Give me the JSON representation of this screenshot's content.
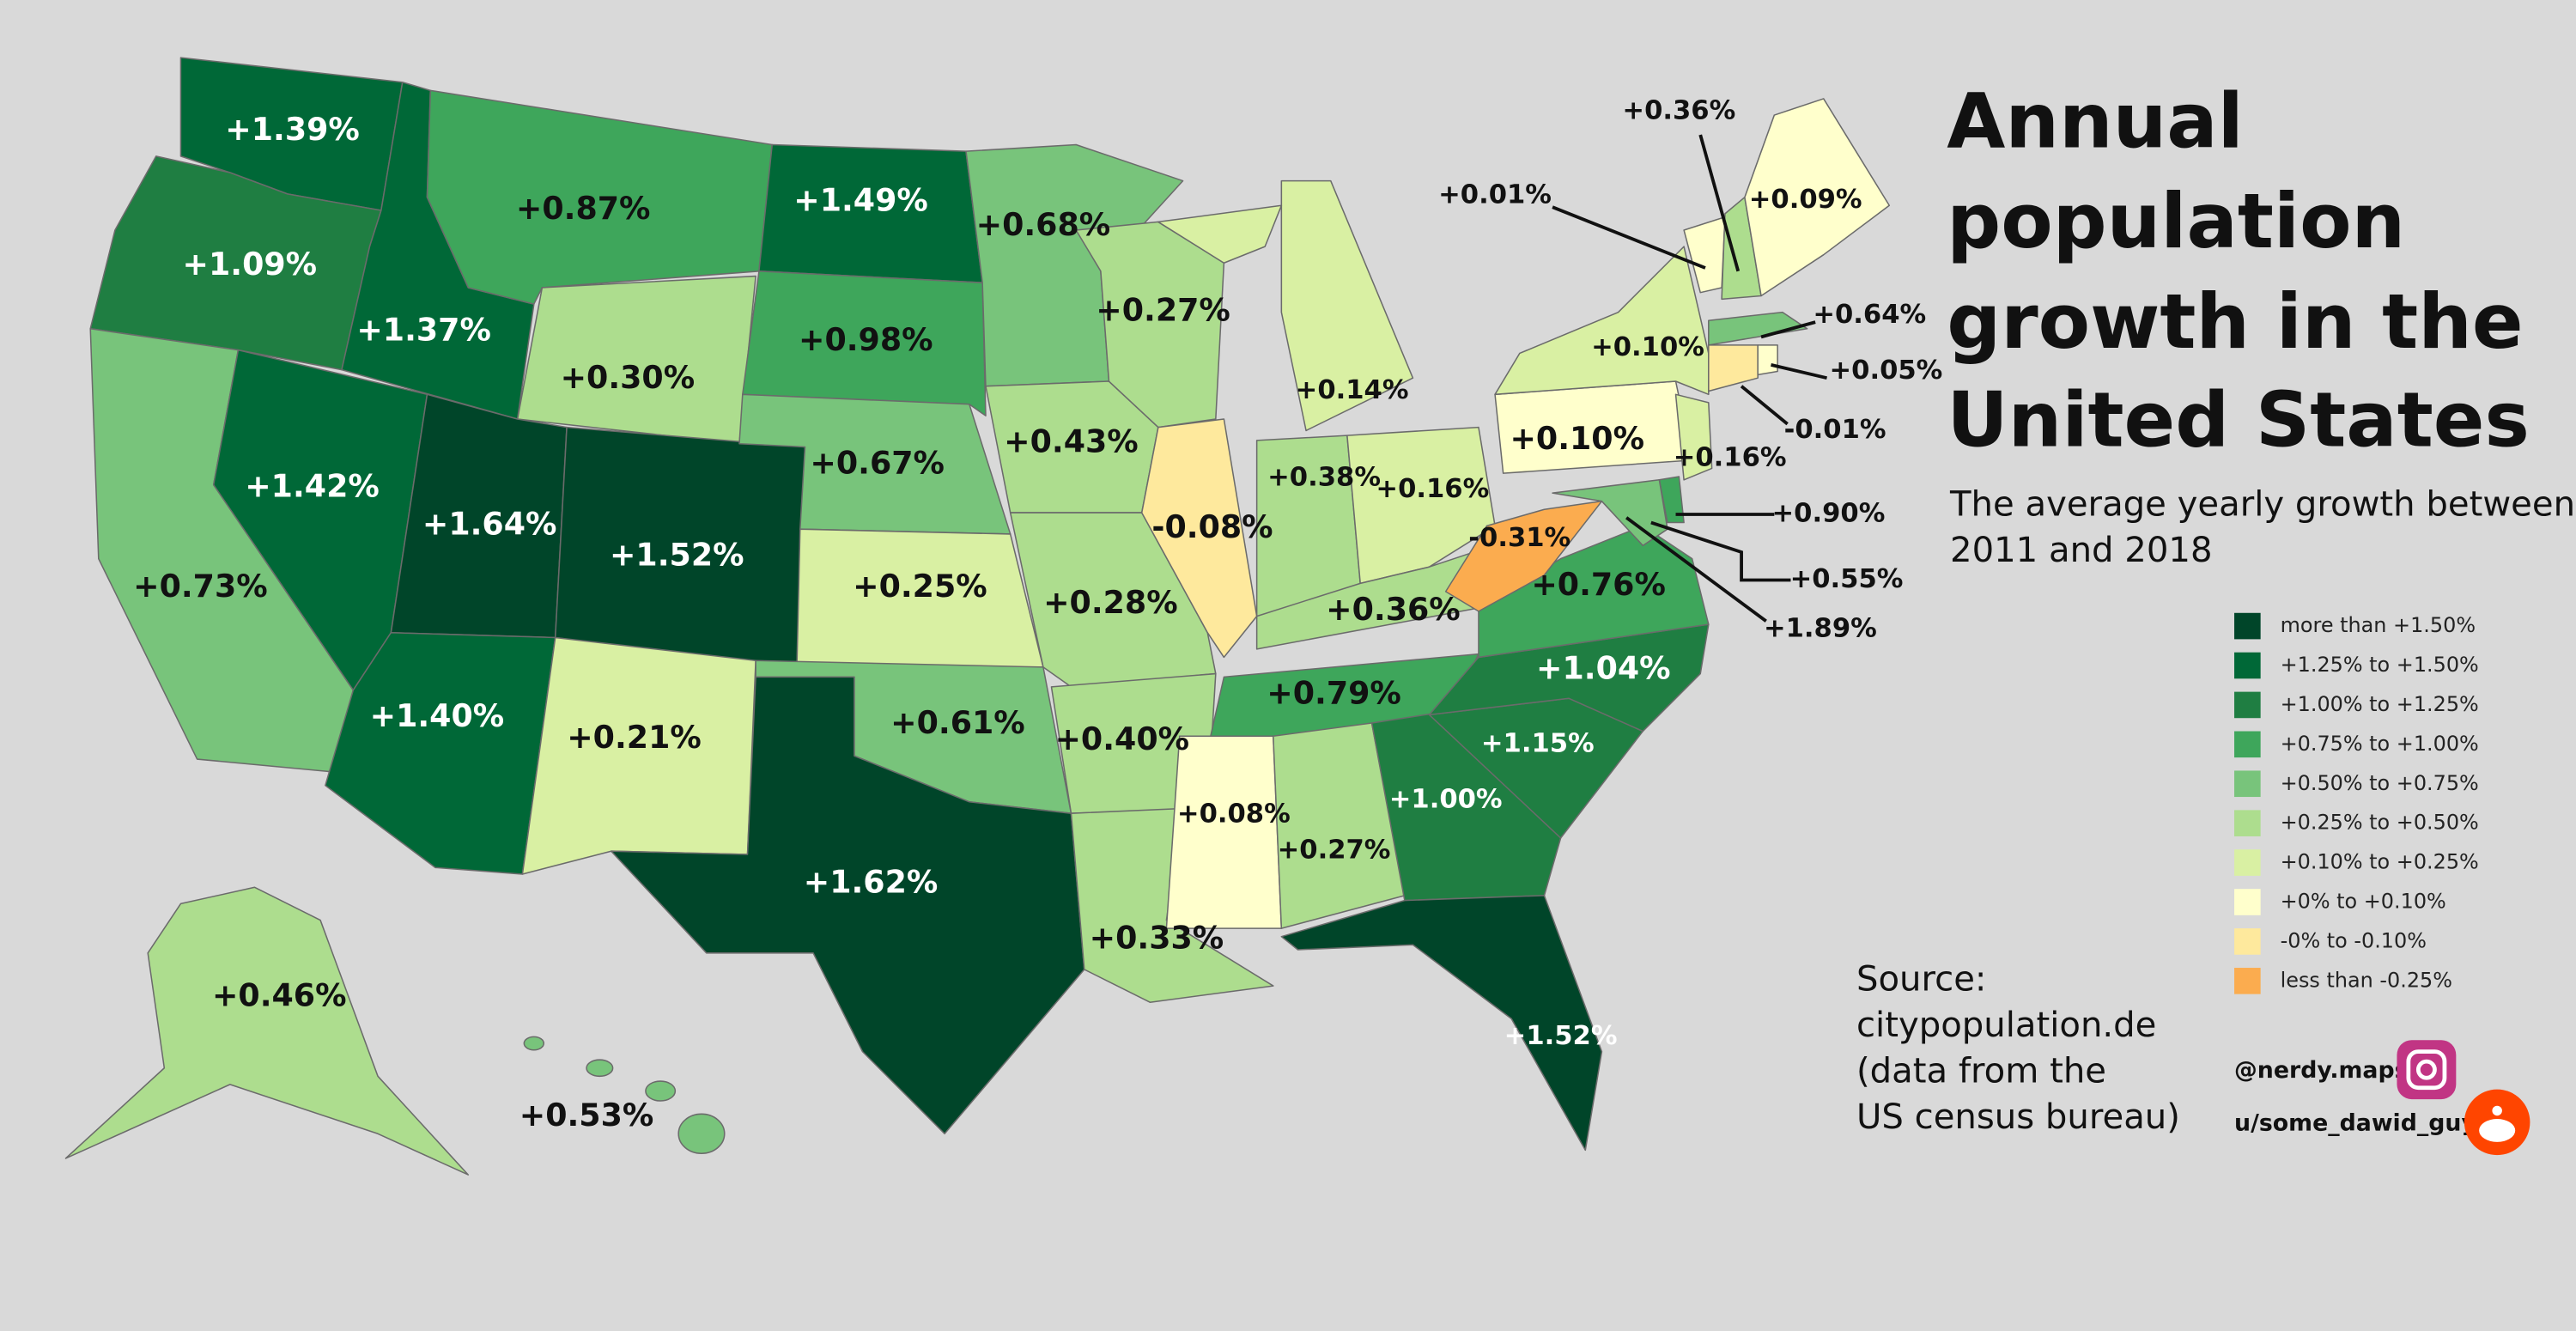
{
  "title": [
    "Annual",
    "population",
    "growth in the",
    "United States"
  ],
  "subtitle": [
    "The average yearly growth between",
    "2011 and 2018"
  ],
  "legend": [
    {
      "label": "more than +1.50%",
      "color": "#004529"
    },
    {
      "label": "+1.25% to +1.50%",
      "color": "#006837"
    },
    {
      "label": "+1.00% to +1.25%",
      "color": "#1f7e42"
    },
    {
      "label": "+0.75% to +1.00%",
      "color": "#3ea65b"
    },
    {
      "label": "+0.50% to +0.75%",
      "color": "#78c47b"
    },
    {
      "label": "+0.25% to +0.50%",
      "color": "#addd8e"
    },
    {
      "label": "+0.10% to +0.25%",
      "color": "#d9f0a3"
    },
    {
      "label": "+0% to +0.10%",
      "color": "#ffffcc"
    },
    {
      "label": "-0% to -0.10%",
      "color": "#fee99d"
    },
    {
      "label": "less than -0.25%",
      "color": "#fbac4f"
    }
  ],
  "map_labels": [
    "+1.39%",
    "+1.09%",
    "+0.87%",
    "+1.37%",
    "+1.49%",
    "+0.68%",
    "+0.27%",
    "+0.98%",
    "+0.30%",
    "+0.14%",
    "+1.42%",
    "+1.64%",
    "+1.52%",
    "+0.67%",
    "+0.43%",
    "-0.08%",
    "+0.38%",
    "+0.16%",
    "+0.10%",
    "+0.73%",
    "+0.25%",
    "+0.28%",
    "+0.36%",
    "-0.31%",
    "+0.76%",
    "+1.40%",
    "+0.21%",
    "+0.61%",
    "+0.40%",
    "+0.79%",
    "+1.04%",
    "+1.15%",
    "+0.08%",
    "+1.00%",
    "+0.27%",
    "+1.62%",
    "+0.33%",
    "+1.52%",
    "+0.46%",
    "+0.53%",
    "+0.36%",
    "+0.01%",
    "+0.09%",
    "+0.64%",
    "+0.10%",
    "+0.05%",
    "-0.01%",
    "+0.16%",
    "+0.90%",
    "+0.55%",
    "+1.89%"
  ],
  "source": [
    "Source:",
    "citypopulation.de",
    "(data from the",
    "US census bureau)"
  ],
  "credits": [
    "@nerdy.maps",
    "u/some_dawid_guy"
  ]
}
